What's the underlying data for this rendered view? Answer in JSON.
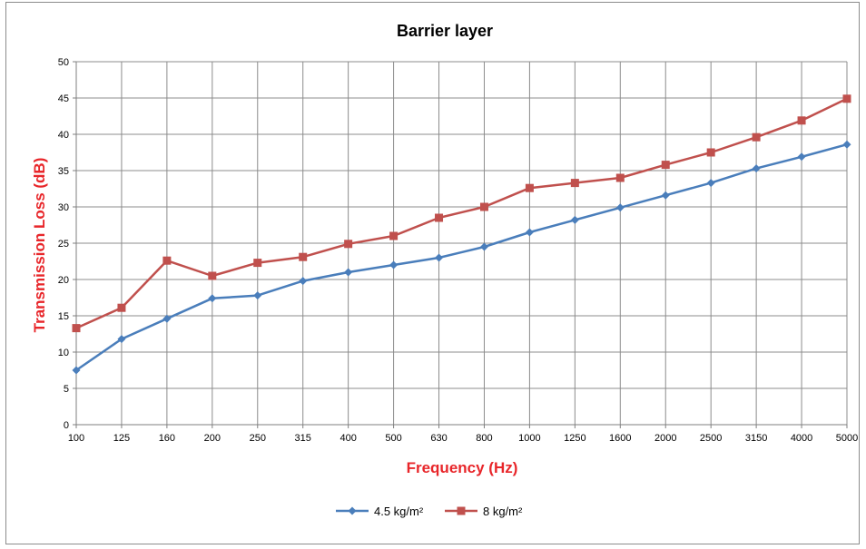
{
  "chart_data": {
    "type": "line",
    "title": "Barrier layer",
    "xlabel": "Frequency  (Hz)",
    "ylabel": "Transmission Loss (dB)",
    "categories": [
      "100",
      "125",
      "160",
      "200",
      "250",
      "315",
      "400",
      "500",
      "630",
      "800",
      "1000",
      "1250",
      "1600",
      "2000",
      "2500",
      "3150",
      "4000",
      "5000"
    ],
    "ylim": [
      0,
      50
    ],
    "yticks": [
      "0",
      "5",
      "10",
      "15",
      "20",
      "25",
      "30",
      "35",
      "40",
      "45",
      "50"
    ],
    "grid": true,
    "legend_position": "bottom",
    "axis_title_color": "#e8262a",
    "series": [
      {
        "name": "4.5 kg/m²",
        "color": "#4a7ebb",
        "marker": "diamond",
        "values": [
          7.5,
          11.8,
          14.6,
          17.4,
          17.8,
          19.8,
          21.0,
          22.0,
          23.0,
          24.5,
          26.5,
          28.2,
          29.9,
          31.6,
          33.3,
          35.3,
          36.9,
          38.6
        ]
      },
      {
        "name": "8 kg/m²",
        "color": "#c0504d",
        "marker": "square",
        "values": [
          13.3,
          16.1,
          22.6,
          20.5,
          22.3,
          23.1,
          24.9,
          26.0,
          28.5,
          30.0,
          32.6,
          33.3,
          34.0,
          35.8,
          37.5,
          39.6,
          41.9,
          44.9
        ]
      }
    ]
  }
}
